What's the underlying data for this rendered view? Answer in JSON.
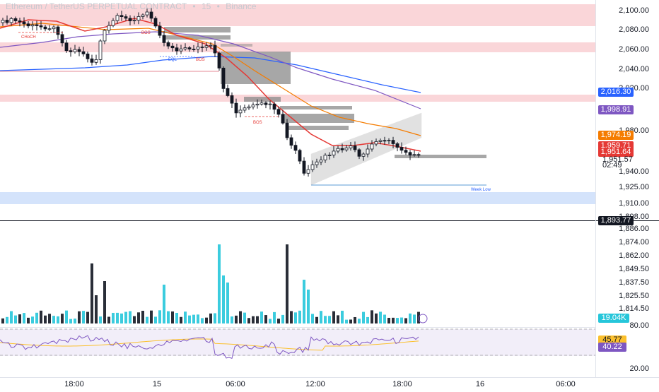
{
  "header": {
    "symbol": "Ethereum / TetherUS PERPETUAL CONTRACT",
    "sep": "•",
    "interval": "15",
    "exchange": "Binance"
  },
  "price_axis": {
    "labels": [
      "2,100.00",
      "2,080.00",
      "2,060.00",
      "2,040.00",
      "2,020.00",
      "1,980.00",
      "1,940.00",
      "1,925.00",
      "1,910.00",
      "1,898.00",
      "1,886.00",
      "1,874.00",
      "1,862.00",
      "1,849.50",
      "1,837.50",
      "1,825.50",
      "1,814.50",
      "80.00",
      "20.00"
    ],
    "label_values": [
      2100,
      2080,
      2060,
      2040,
      2020,
      1980,
      1940,
      1925,
      1910,
      1898,
      1886,
      1874,
      1862,
      1849.5,
      1837.5,
      1825.5,
      1814.5
    ]
  },
  "price_tags": {
    "ma_blue": {
      "text": "2,016.30",
      "color": "#2962ff"
    },
    "ma_purple": {
      "text": "1,998.91",
      "color": "#7e57c2"
    },
    "ma_orange": {
      "text": "1,974.19",
      "color": "#f57c00"
    },
    "price_a": {
      "text": "1,959.71",
      "color": "#e53935"
    },
    "price_b": {
      "text": "1,951.64",
      "color": "#e53935"
    },
    "last_price": "1,951.57",
    "countdown": "02:49",
    "level": {
      "text": "1,893.77",
      "color": "#131722"
    },
    "volume": {
      "text": "19.04K",
      "color": "#26c6da"
    },
    "rsi_a": {
      "text": "45.77",
      "color": "#fbc02d"
    },
    "rsi_b": {
      "text": "40.22",
      "color": "#7e57c2"
    }
  },
  "annotations": {
    "choch": "CHoCH",
    "bos_1": "BOS",
    "eql": "EQL",
    "bos_2": "BOS",
    "bos_3": "BOS",
    "week_low": "Week Low"
  },
  "time_axis": {
    "labels": [
      "18:00",
      "15",
      "06:00",
      "12:00",
      "18:00",
      "16",
      "06:00"
    ]
  },
  "colors": {
    "up": "#26c6da",
    "down": "#131722",
    "supply_zone": "#f8c8cc",
    "demand_zone": "#cfe0fb",
    "ma_red": "#e53935",
    "ma_orange": "#f57c00",
    "ma_purple": "#7e57c2",
    "ma_blue": "#2962ff"
  }
}
